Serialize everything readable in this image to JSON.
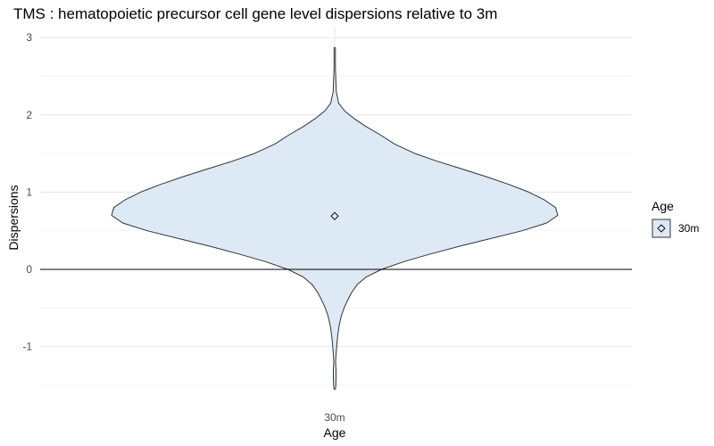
{
  "chart_data": {
    "type": "violin",
    "title": "TMS : hematopoietic precursor cell gene level dispersions relative to 3m",
    "xlabel": "Age",
    "ylabel": "Dispersions",
    "categories": [
      "30m"
    ],
    "y_ticks": [
      -1,
      0,
      1,
      2,
      3
    ],
    "ylim": [
      -1.6,
      3.0
    ],
    "grid": true,
    "reference_line_y": 0,
    "legend": {
      "title": "Age",
      "placement": "right",
      "entries": [
        "30m"
      ]
    },
    "series": [
      {
        "name": "30m",
        "fill_color": "#dde9f5",
        "line_color": "#333333",
        "median": 0.69,
        "y_min": -1.55,
        "y_max": 2.87,
        "density_profile": [
          {
            "y": 2.87,
            "w": 0.003
          },
          {
            "y": 2.6,
            "w": 0.003
          },
          {
            "y": 2.3,
            "w": 0.007
          },
          {
            "y": 2.15,
            "w": 0.018
          },
          {
            "y": 2.05,
            "w": 0.045
          },
          {
            "y": 1.95,
            "w": 0.088
          },
          {
            "y": 1.85,
            "w": 0.14
          },
          {
            "y": 1.75,
            "w": 0.2
          },
          {
            "y": 1.62,
            "w": 0.27
          },
          {
            "y": 1.5,
            "w": 0.36
          },
          {
            "y": 1.4,
            "w": 0.46
          },
          {
            "y": 1.3,
            "w": 0.57
          },
          {
            "y": 1.2,
            "w": 0.68
          },
          {
            "y": 1.1,
            "w": 0.78
          },
          {
            "y": 1.0,
            "w": 0.87
          },
          {
            "y": 0.9,
            "w": 0.94
          },
          {
            "y": 0.8,
            "w": 0.99
          },
          {
            "y": 0.7,
            "w": 1.0
          },
          {
            "y": 0.6,
            "w": 0.95
          },
          {
            "y": 0.5,
            "w": 0.84
          },
          {
            "y": 0.4,
            "w": 0.7
          },
          {
            "y": 0.3,
            "w": 0.56
          },
          {
            "y": 0.2,
            "w": 0.43
          },
          {
            "y": 0.1,
            "w": 0.31
          },
          {
            "y": 0.0,
            "w": 0.21
          },
          {
            "y": -0.1,
            "w": 0.14
          },
          {
            "y": -0.2,
            "w": 0.1
          },
          {
            "y": -0.3,
            "w": 0.076
          },
          {
            "y": -0.4,
            "w": 0.058
          },
          {
            "y": -0.5,
            "w": 0.042
          },
          {
            "y": -0.6,
            "w": 0.03
          },
          {
            "y": -0.7,
            "w": 0.022
          },
          {
            "y": -0.8,
            "w": 0.016
          },
          {
            "y": -0.9,
            "w": 0.012
          },
          {
            "y": -1.0,
            "w": 0.009
          },
          {
            "y": -1.1,
            "w": 0.006
          },
          {
            "y": -1.2,
            "w": 0.004
          },
          {
            "y": -1.3,
            "w": 0.006
          },
          {
            "y": -1.4,
            "w": 0.006
          },
          {
            "y": -1.5,
            "w": 0.005
          },
          {
            "y": -1.55,
            "w": 0.003
          }
        ]
      }
    ]
  }
}
